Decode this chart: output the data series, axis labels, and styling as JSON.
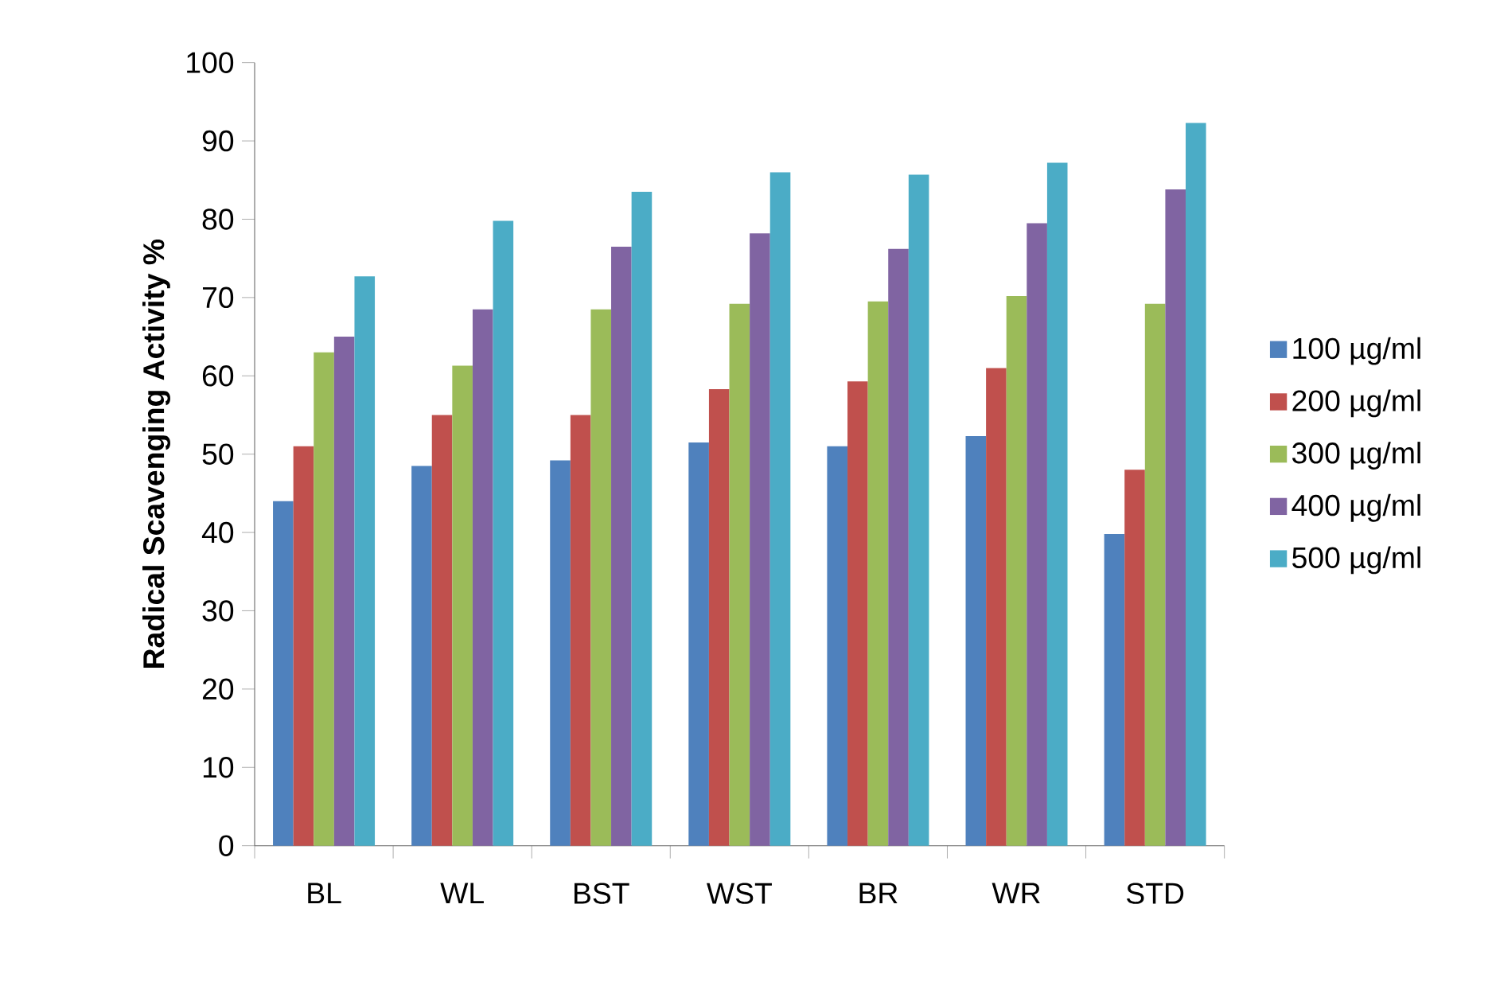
{
  "chart_data": {
    "type": "bar",
    "ylabel": "Radical Scavenging Activity %",
    "categories": [
      "BL",
      "WL",
      "BST",
      "WST",
      "BR",
      "WR",
      "STD"
    ],
    "series": [
      {
        "name": "100 µg/ml",
        "color": "#4f81bd",
        "values": [
          44,
          48.5,
          49.2,
          51.5,
          51,
          52.3,
          39.8
        ]
      },
      {
        "name": "200 µg/ml",
        "color": "#c0504d",
        "values": [
          51,
          55,
          55,
          58.3,
          59.3,
          61,
          48
        ]
      },
      {
        "name": "300 µg/ml",
        "color": "#9bbb59",
        "values": [
          63,
          61.3,
          68.5,
          69.2,
          69.5,
          70.2,
          69.2
        ]
      },
      {
        "name": "400 µg/ml",
        "color": "#8064a2",
        "values": [
          65,
          68.5,
          76.5,
          78.2,
          76.2,
          79.5,
          83.8
        ]
      },
      {
        "name": "500 µg/ml",
        "color": "#4bacc6",
        "values": [
          72.7,
          79.8,
          83.5,
          86,
          85.7,
          87.2,
          92.3
        ]
      }
    ],
    "ylim": [
      0,
      100
    ],
    "yticks": [
      0,
      10,
      20,
      30,
      40,
      50,
      60,
      70,
      80,
      90,
      100
    ],
    "grid": false,
    "legend": "right"
  }
}
